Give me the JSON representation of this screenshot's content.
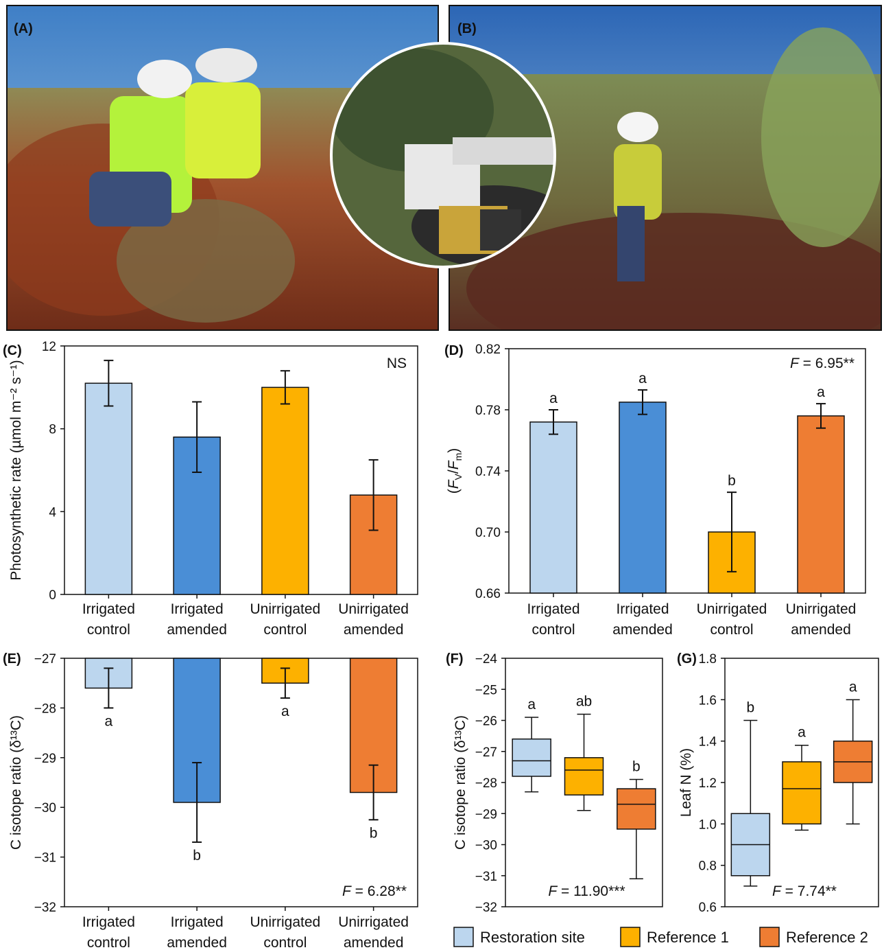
{
  "panels": {
    "A": "(A)",
    "B": "(B)",
    "C": "(C)",
    "D": "(D)",
    "E": "(E)",
    "F": "(F)",
    "G": "(G)"
  },
  "colors": {
    "light_blue": "#bcd6ee",
    "blue": "#4a8ed6",
    "yellow": "#fdb100",
    "orange": "#ee7d33",
    "axis": "#111111"
  },
  "photo_icons": [
    "field-photo-A-icon",
    "field-photo-B-icon",
    "instrument-inset-icon"
  ],
  "chart_data": [
    {
      "panel": "C",
      "type": "bar",
      "ylabel": "Photosynthetic rate (µmol m⁻² s⁻¹)",
      "ylim": [
        0,
        12
      ],
      "yticks": [
        "0",
        "4",
        "8",
        "12"
      ],
      "categories": [
        [
          "Irrigated",
          "control"
        ],
        [
          "Irrigated",
          "amended"
        ],
        [
          "Unirrigated",
          "control"
        ],
        [
          "Unirrigated",
          "amended"
        ]
      ],
      "values": [
        10.2,
        7.6,
        10.0,
        4.8
      ],
      "errors": [
        1.1,
        1.7,
        0.8,
        1.7
      ],
      "letters": [
        "",
        "",
        "",
        ""
      ],
      "stat": "NS"
    },
    {
      "panel": "D",
      "type": "bar",
      "ylabel": "(Fv/Fm)",
      "ylim": [
        0.66,
        0.82
      ],
      "yticks": [
        "0.66",
        "0.70",
        "0.74",
        "0.78",
        "0.82"
      ],
      "categories": [
        [
          "Irrigated",
          "control"
        ],
        [
          "Irrigated",
          "amended"
        ],
        [
          "Unirrigated",
          "control"
        ],
        [
          "Unirrigated",
          "amended"
        ]
      ],
      "values": [
        0.772,
        0.785,
        0.7,
        0.776
      ],
      "errors": [
        0.008,
        0.008,
        0.026,
        0.008
      ],
      "letters": [
        "a",
        "a",
        "b",
        "a"
      ],
      "stat_prefix": "F",
      "stat": " = 6.95**"
    },
    {
      "panel": "E",
      "type": "bar",
      "ylabel": "C isotope ratio (δ¹³C)",
      "ylim": [
        -32,
        -27
      ],
      "yticks": [
        "−32",
        "−31",
        "−30",
        "−29",
        "−28",
        "−27"
      ],
      "categories": [
        [
          "Irrigated",
          "control"
        ],
        [
          "Irrigated",
          "amended"
        ],
        [
          "Unirrigated",
          "control"
        ],
        [
          "Unirrigated",
          "amended"
        ]
      ],
      "values": [
        -27.6,
        -29.9,
        -27.5,
        -29.7
      ],
      "errors": [
        0.4,
        0.8,
        0.3,
        0.55
      ],
      "letters": [
        "a",
        "b",
        "a",
        "b"
      ],
      "stat_prefix": "F",
      "stat": " = 6.28**"
    },
    {
      "panel": "F",
      "type": "box",
      "ylabel": "C isotope ratio (δ¹³C)",
      "ylim": [
        -32,
        -24
      ],
      "yticks": [
        "−32",
        "−31",
        "−30",
        "−29",
        "−28",
        "−27",
        "−26",
        "−25",
        "−24"
      ],
      "boxes": [
        {
          "min": -28.3,
          "q1": -27.8,
          "median": -27.3,
          "q3": -26.6,
          "max": -25.9
        },
        {
          "min": -28.9,
          "q1": -28.4,
          "median": -27.6,
          "q3": -27.2,
          "max": -25.8
        },
        {
          "min": -31.1,
          "q1": -29.5,
          "median": -28.7,
          "q3": -28.2,
          "max": -27.9
        }
      ],
      "letters": [
        "a",
        "ab",
        "b"
      ],
      "stat_prefix": "F",
      "stat": " = 11.90***"
    },
    {
      "panel": "G",
      "type": "box",
      "ylabel": "Leaf N (%)",
      "ylim": [
        0.6,
        1.8
      ],
      "yticks": [
        "0.6",
        "0.8",
        "1.0",
        "1.2",
        "1.4",
        "1.6",
        "1.8"
      ],
      "boxes": [
        {
          "min": 0.7,
          "q1": 0.75,
          "median": 0.9,
          "q3": 1.05,
          "max": 1.5
        },
        {
          "min": 0.97,
          "q1": 1.0,
          "median": 1.17,
          "q3": 1.3,
          "max": 1.38
        },
        {
          "min": 1.0,
          "q1": 1.2,
          "median": 1.3,
          "q3": 1.4,
          "max": 1.6
        }
      ],
      "letters": [
        "b",
        "a",
        "a"
      ],
      "stat_prefix": "F",
      "stat": " = 7.74**"
    }
  ],
  "legend": [
    "Restoration site",
    "Reference 1",
    "Reference 2"
  ]
}
